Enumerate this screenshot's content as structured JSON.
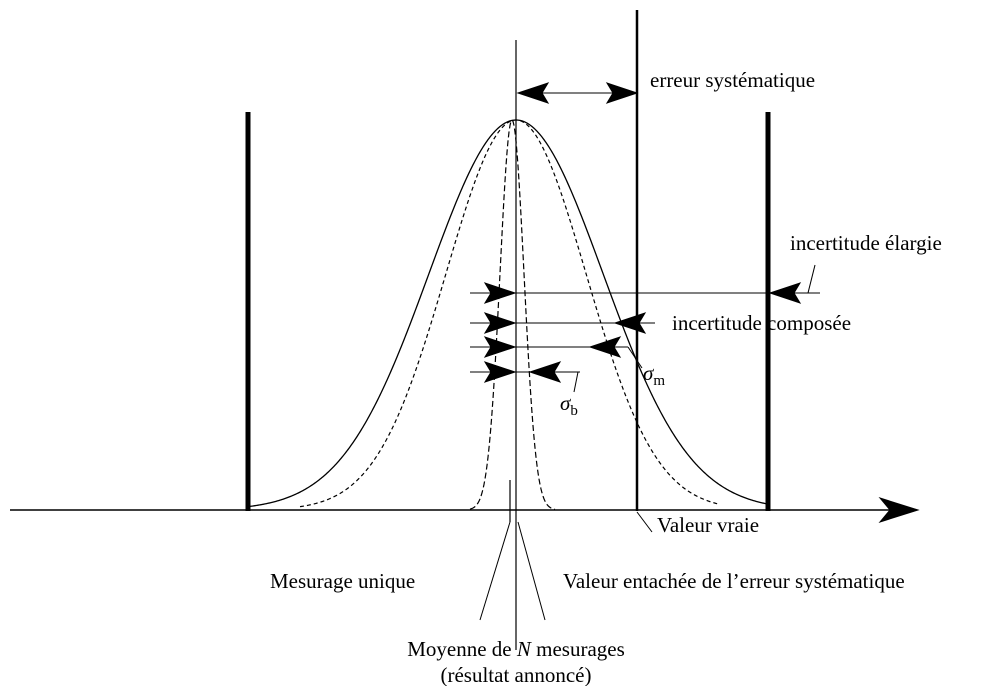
{
  "labels": {
    "systematic_error": "erreur systématique",
    "expanded_uncertainty": "incertitude élargie",
    "combined_uncertainty": "incertitude composée",
    "sigma_m": {
      "symbol": "σ",
      "subscript": "m"
    },
    "sigma_b": {
      "symbol": "σ",
      "subscript": "b"
    },
    "true_value": "Valeur vraie",
    "single_measurement": "Mesurage unique",
    "biased_value": "Valeur entachée de l’erreur systématique",
    "mean": {
      "before": "Moyenne de ",
      "symbol": "N",
      "after": " mesurages"
    },
    "announced": "(résultat annoncé)"
  }
}
